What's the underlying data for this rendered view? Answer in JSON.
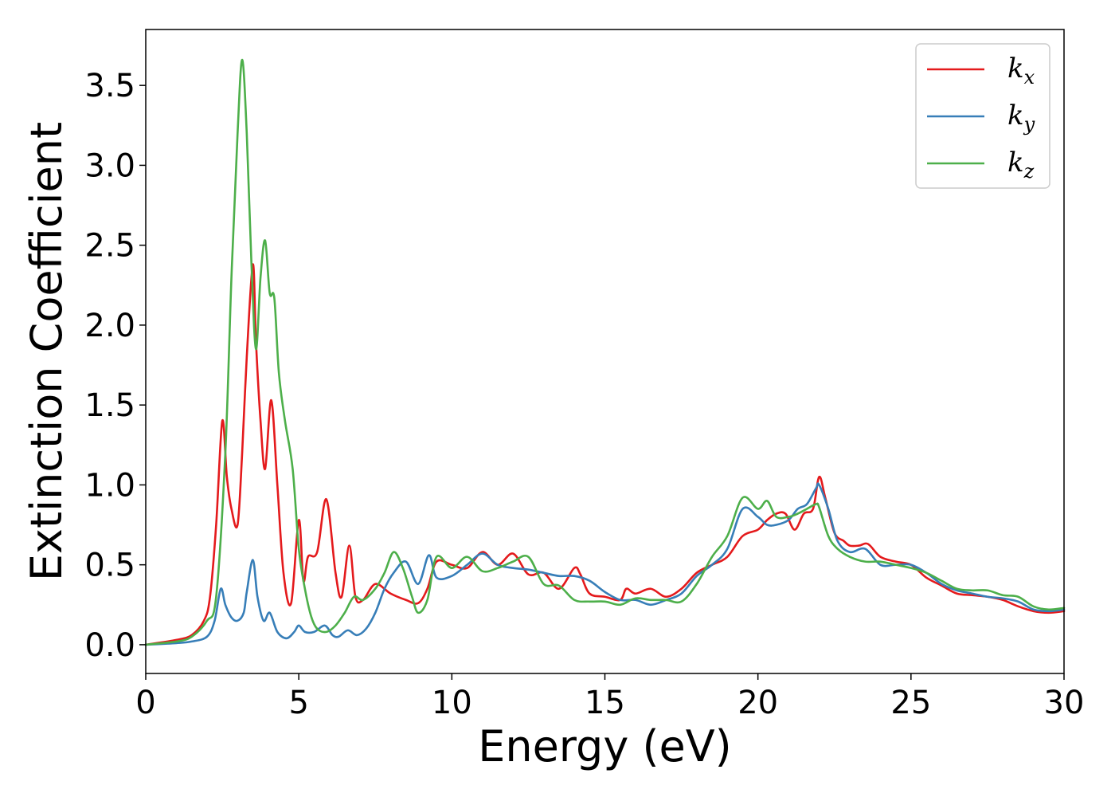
{
  "chart_data": {
    "type": "line",
    "title": "",
    "xlabel": "Energy (eV)",
    "ylabel": "Extinction Coefficient",
    "xlim": [
      0,
      30
    ],
    "ylim": [
      -0.18,
      3.85
    ],
    "xticks": [
      0,
      5,
      10,
      15,
      20,
      25,
      30
    ],
    "xtick_labels": [
      "0",
      "5",
      "10",
      "15",
      "20",
      "25",
      "30"
    ],
    "yticks": [
      0.0,
      0.5,
      1.0,
      1.5,
      2.0,
      2.5,
      3.0,
      3.5
    ],
    "ytick_labels": [
      "0.0",
      "0.5",
      "1.0",
      "1.5",
      "2.0",
      "2.5",
      "3.0",
      "3.5"
    ],
    "grid": false,
    "legend_position": "top-right",
    "series": [
      {
        "name": "k",
        "subscript": "x",
        "color": "#e41a1c",
        "x": [
          0,
          1,
          1.5,
          1.9,
          2.1,
          2.3,
          2.5,
          2.65,
          2.8,
          3.0,
          3.15,
          3.3,
          3.5,
          3.6,
          3.75,
          3.9,
          4.1,
          4.3,
          4.5,
          4.75,
          5.0,
          5.15,
          5.3,
          5.6,
          5.9,
          6.2,
          6.4,
          6.65,
          6.85,
          7.1,
          7.5,
          8.0,
          8.5,
          8.9,
          9.2,
          9.5,
          10.0,
          10.5,
          11.0,
          11.5,
          12.0,
          12.5,
          13.0,
          13.5,
          14.0,
          14.2,
          14.5,
          15.0,
          15.5,
          15.7,
          16.0,
          16.5,
          17.0,
          17.5,
          18.0,
          18.5,
          19.0,
          19.5,
          20.0,
          20.3,
          20.6,
          20.9,
          21.2,
          21.5,
          21.8,
          22.0,
          22.2,
          22.5,
          22.8,
          23.0,
          23.3,
          23.6,
          24.0,
          24.5,
          25.0,
          25.5,
          26.0,
          26.5,
          27.0,
          27.5,
          28.0,
          28.5,
          29.0,
          29.5,
          30.0
        ],
        "y": [
          0.0,
          0.03,
          0.06,
          0.15,
          0.3,
          0.75,
          1.4,
          1.05,
          0.85,
          0.75,
          1.2,
          1.8,
          2.38,
          1.9,
          1.4,
          1.1,
          1.53,
          1.0,
          0.45,
          0.26,
          0.78,
          0.4,
          0.55,
          0.58,
          0.91,
          0.45,
          0.3,
          0.62,
          0.3,
          0.28,
          0.38,
          0.32,
          0.28,
          0.26,
          0.35,
          0.52,
          0.5,
          0.48,
          0.58,
          0.5,
          0.57,
          0.44,
          0.45,
          0.35,
          0.48,
          0.44,
          0.32,
          0.3,
          0.28,
          0.35,
          0.32,
          0.35,
          0.3,
          0.35,
          0.45,
          0.5,
          0.55,
          0.68,
          0.72,
          0.78,
          0.82,
          0.82,
          0.72,
          0.82,
          0.85,
          1.05,
          0.92,
          0.7,
          0.65,
          0.62,
          0.62,
          0.63,
          0.55,
          0.52,
          0.5,
          0.42,
          0.37,
          0.32,
          0.31,
          0.3,
          0.28,
          0.24,
          0.21,
          0.2,
          0.21
        ]
      },
      {
        "name": "k",
        "subscript": "y",
        "color": "#377eb8",
        "x": [
          0,
          1,
          1.5,
          2.0,
          2.25,
          2.45,
          2.6,
          2.8,
          3.0,
          3.2,
          3.3,
          3.5,
          3.65,
          3.85,
          4.05,
          4.3,
          4.6,
          4.85,
          5.0,
          5.2,
          5.5,
          5.85,
          6.1,
          6.3,
          6.6,
          6.9,
          7.2,
          7.5,
          7.8,
          8.1,
          8.5,
          8.9,
          9.25,
          9.5,
          10.0,
          10.5,
          11.0,
          11.5,
          12.0,
          12.5,
          13.0,
          13.5,
          14.0,
          14.5,
          15.0,
          15.5,
          16.0,
          16.5,
          17.0,
          17.5,
          18.0,
          18.5,
          19.0,
          19.5,
          20.0,
          20.3,
          20.6,
          21.0,
          21.3,
          21.6,
          21.9,
          22.0,
          22.3,
          22.6,
          23.0,
          23.5,
          24.0,
          24.5,
          25.0,
          25.5,
          26.0,
          26.5,
          27.0,
          27.5,
          28.0,
          28.5,
          29.0,
          29.5,
          30.0
        ],
        "y": [
          0.0,
          0.01,
          0.02,
          0.05,
          0.15,
          0.35,
          0.25,
          0.17,
          0.15,
          0.2,
          0.33,
          0.53,
          0.3,
          0.15,
          0.2,
          0.08,
          0.04,
          0.08,
          0.12,
          0.08,
          0.08,
          0.12,
          0.06,
          0.05,
          0.09,
          0.06,
          0.1,
          0.2,
          0.35,
          0.45,
          0.52,
          0.38,
          0.56,
          0.42,
          0.43,
          0.5,
          0.57,
          0.5,
          0.48,
          0.47,
          0.45,
          0.43,
          0.43,
          0.4,
          0.33,
          0.28,
          0.28,
          0.25,
          0.28,
          0.32,
          0.43,
          0.5,
          0.6,
          0.85,
          0.8,
          0.75,
          0.75,
          0.78,
          0.85,
          0.88,
          0.98,
          1.0,
          0.85,
          0.65,
          0.58,
          0.6,
          0.5,
          0.5,
          0.5,
          0.45,
          0.38,
          0.34,
          0.32,
          0.3,
          0.29,
          0.27,
          0.22,
          0.21,
          0.22
        ]
      },
      {
        "name": "k",
        "subscript": "z",
        "color": "#4daf4a",
        "x": [
          0,
          1,
          1.5,
          2.0,
          2.3,
          2.6,
          2.8,
          3.0,
          3.15,
          3.3,
          3.45,
          3.6,
          3.75,
          3.9,
          4.05,
          4.2,
          4.35,
          4.55,
          4.8,
          5.0,
          5.2,
          5.4,
          5.6,
          5.9,
          6.2,
          6.5,
          6.8,
          7.1,
          7.5,
          7.8,
          8.1,
          8.4,
          8.7,
          8.9,
          9.2,
          9.5,
          10.0,
          10.5,
          11.0,
          11.5,
          12.0,
          12.5,
          13.0,
          13.5,
          14.0,
          14.5,
          15.0,
          15.5,
          16.0,
          16.5,
          17.0,
          17.5,
          18.0,
          18.5,
          19.0,
          19.5,
          20.0,
          20.3,
          20.6,
          21.0,
          21.3,
          21.6,
          21.9,
          22.0,
          22.3,
          22.6,
          23.0,
          23.5,
          24.0,
          24.5,
          25.0,
          25.5,
          26.0,
          26.5,
          27.0,
          27.5,
          28.0,
          28.5,
          29.0,
          29.5,
          30.0
        ],
        "y": [
          0.0,
          0.02,
          0.05,
          0.15,
          0.3,
          1.2,
          2.3,
          3.2,
          3.66,
          3.2,
          2.4,
          1.85,
          2.3,
          2.53,
          2.2,
          2.17,
          1.7,
          1.4,
          1.1,
          0.6,
          0.35,
          0.18,
          0.1,
          0.08,
          0.12,
          0.2,
          0.3,
          0.28,
          0.35,
          0.45,
          0.58,
          0.48,
          0.3,
          0.2,
          0.28,
          0.55,
          0.48,
          0.55,
          0.46,
          0.48,
          0.52,
          0.55,
          0.38,
          0.37,
          0.28,
          0.27,
          0.27,
          0.25,
          0.29,
          0.28,
          0.28,
          0.27,
          0.38,
          0.55,
          0.68,
          0.92,
          0.85,
          0.9,
          0.8,
          0.8,
          0.82,
          0.85,
          0.88,
          0.86,
          0.68,
          0.6,
          0.55,
          0.52,
          0.52,
          0.5,
          0.48,
          0.45,
          0.4,
          0.35,
          0.34,
          0.34,
          0.31,
          0.3,
          0.24,
          0.22,
          0.23
        ]
      }
    ]
  }
}
